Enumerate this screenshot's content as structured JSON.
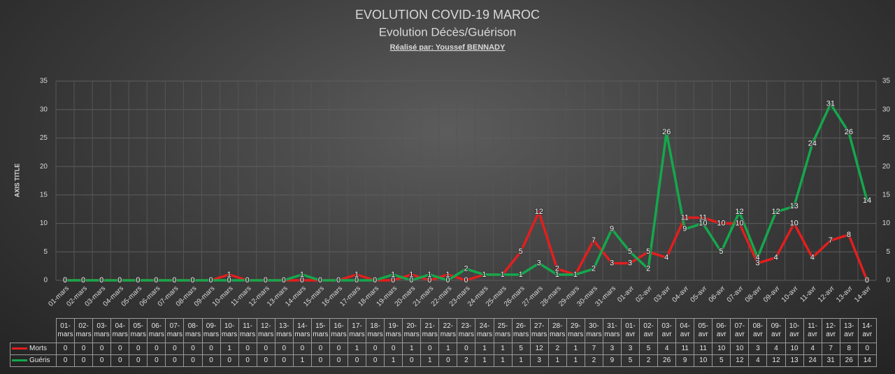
{
  "chart_data": {
    "type": "line",
    "title": "EVOLUTION COVID-19 MAROC",
    "subtitle": "Evolution Décès/Guérison",
    "author": "Réalisé par: Youssef BENNADY",
    "y_axis_label": "AXIS TITLE",
    "categories": [
      "01-mars",
      "02-mars",
      "03-mars",
      "04-mars",
      "05-mars",
      "06-mars",
      "07-mars",
      "08-mars",
      "09-mars",
      "10-mars",
      "11-mars",
      "12-mars",
      "13-mars",
      "14-mars",
      "15-mars",
      "16-mars",
      "17-mars",
      "18-mars",
      "19-mars",
      "20-mars",
      "21-mars",
      "22-mars",
      "23-mars",
      "24-mars",
      "25-mars",
      "26-mars",
      "27-mars",
      "28-mars",
      "29-mars",
      "30-mars",
      "31-mars",
      "01-avr",
      "02-avr",
      "03-avr",
      "04-avr",
      "05-avr",
      "06-avr",
      "07-avr",
      "08-avr",
      "09-avr",
      "10-avr",
      "11-avr",
      "12-avr",
      "13-avr",
      "14-avr"
    ],
    "series": [
      {
        "name": "Morts",
        "color": "#e31e1e",
        "values": [
          0,
          0,
          0,
          0,
          0,
          0,
          0,
          0,
          0,
          1,
          0,
          0,
          0,
          0,
          0,
          0,
          1,
          0,
          0,
          1,
          0,
          1,
          0,
          1,
          1,
          5,
          12,
          2,
          1,
          7,
          3,
          3,
          5,
          4,
          11,
          11,
          10,
          10,
          3,
          4,
          10,
          4,
          7,
          8,
          0
        ]
      },
      {
        "name": "Guéris",
        "color": "#14a84c",
        "values": [
          0,
          0,
          0,
          0,
          0,
          0,
          0,
          0,
          0,
          0,
          0,
          0,
          0,
          1,
          0,
          0,
          0,
          0,
          1,
          0,
          1,
          0,
          2,
          1,
          1,
          1,
          3,
          1,
          1,
          2,
          9,
          5,
          2,
          26,
          9,
          10,
          5,
          12,
          4,
          12,
          13,
          24,
          31,
          26,
          14
        ]
      }
    ],
    "ylim": [
      0,
      35
    ],
    "yticks": [
      0,
      5,
      10,
      15,
      20,
      25,
      30,
      35
    ],
    "y2lim": [
      0,
      35
    ],
    "y2ticks": [
      0,
      5,
      10,
      15,
      20,
      25,
      30,
      35
    ],
    "grid": true,
    "data_table": true
  }
}
